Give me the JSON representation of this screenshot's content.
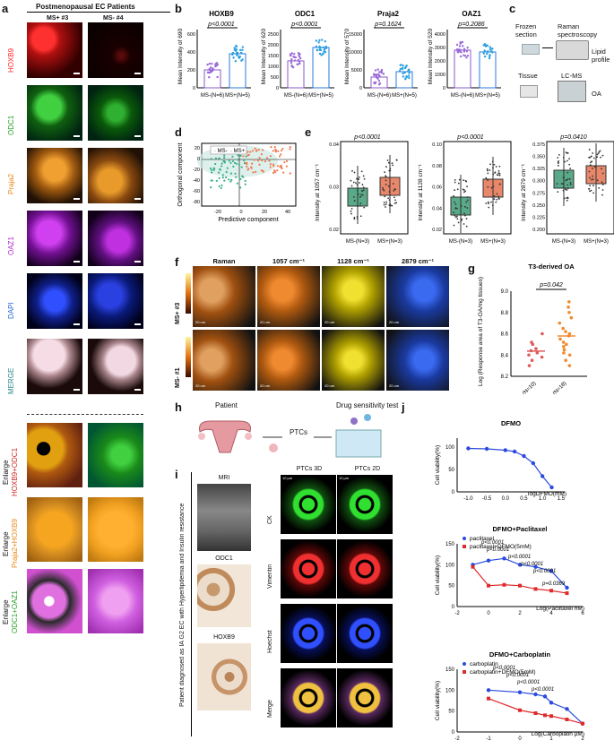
{
  "panel_a": {
    "letter": "a",
    "header": "Postmenopausal EC Patients",
    "col1": "MS+ #3",
    "col2": "MS- #4",
    "rows": [
      {
        "label": "HOXB9",
        "color": "#ff2a2a"
      },
      {
        "label": "ODC1",
        "color": "#2aa02a"
      },
      {
        "label": "Praja2",
        "color": "#e88a1a"
      },
      {
        "label": "OAZ1",
        "color": "#b02ad0"
      },
      {
        "label": "DAPI",
        "color": "#2a6ad8"
      },
      {
        "label": "MERGE",
        "color": "#2a8a8a"
      },
      {
        "label_a": "Enlarge",
        "label_b": "HOXB9+ODC1"
      },
      {
        "label_a": "Enlarge",
        "label_b": "Praja2+HOXB9"
      },
      {
        "label_a": "Enlarge",
        "label_b": "ODC1+OAZ1"
      }
    ]
  },
  "panel_b": {
    "letter": "b",
    "plots": [
      {
        "title": "HOXB9",
        "ylabel": "Mean Intensity of 690",
        "p": "p<0.0001",
        "yticks": [
          "0",
          "200",
          "400",
          "600"
        ]
      },
      {
        "title": "ODC1",
        "ylabel": "Mean Intensity of 620",
        "p": "p<0.0001",
        "yticks": [
          "0",
          "500",
          "1000",
          "1500",
          "2000",
          "2500"
        ]
      },
      {
        "title": "Praja2",
        "ylabel": "Mean Intensity of 570",
        "p": "p=0.1624",
        "yticks": [
          "0",
          "5000",
          "10000",
          "15000"
        ]
      },
      {
        "title": "OAZ1",
        "ylabel": "Mean Intensity of 520",
        "p": "p=0.2086",
        "yticks": [
          "0",
          "1000",
          "2000",
          "3000",
          "4000"
        ]
      }
    ],
    "xcats": [
      "MS-(N=6)",
      "MS+(N=5)"
    ]
  },
  "panel_c": {
    "letter": "c",
    "frozen": "Frozen section",
    "raman": "Raman spectroscopy",
    "lipid": "Lipid profile",
    "tissue": "Tissue",
    "lcms": "LC-MS",
    "oa": "OA"
  },
  "panel_d": {
    "letter": "d",
    "legend": [
      "MS-",
      "MS+"
    ],
    "xlabel": "Predictive component",
    "ylabel": "Orthogonal component",
    "xticks": [
      "-20",
      "0",
      "20",
      "40"
    ],
    "yticks": [
      "20",
      "0",
      "-20",
      "-40",
      "-60",
      "-80"
    ]
  },
  "panel_e": {
    "letter": "e",
    "plots": [
      {
        "ylabel": "Intensity at 1057 cm⁻¹",
        "p": "p<0.0001",
        "yticks": [
          "0.02",
          "0.03",
          "0.04"
        ]
      },
      {
        "ylabel": "Intensity at 1128 cm⁻¹",
        "p": "p<0.0001",
        "yticks": [
          "0.02",
          "0.04",
          "0.06",
          "0.08",
          "0.10"
        ]
      },
      {
        "ylabel": "Intensity at 2879 cm⁻¹",
        "p": "p=0.0410",
        "yticks": [
          "0.200",
          "0.225",
          "0.250",
          "0.275",
          "0.300",
          "0.325",
          "0.350",
          "0.375"
        ]
      }
    ],
    "xcats": [
      "MS-(N=3)",
      "MS+(N=3)"
    ]
  },
  "panel_f": {
    "letter": "f",
    "cols": [
      "Raman",
      "1057 cm⁻¹",
      "1128 cm⁻¹",
      "2879 cm⁻¹"
    ],
    "rows": [
      "MS+ #3",
      "MS- #1"
    ],
    "scale": "20 um"
  },
  "panel_g": {
    "letter": "g",
    "title": "T3-derived OA",
    "p": "p=0.042",
    "ylabel": "Log (Response area of T3-OA/mg tissues)",
    "yticks": [
      "8.2",
      "8.4",
      "8.6",
      "8.8",
      "9.0"
    ],
    "xcats": [
      "MS-(N=10)",
      "MS+(N=18)"
    ]
  },
  "panel_h": {
    "letter": "h",
    "patient": "Patient",
    "ptcs": "PTCs",
    "drug": "Drug sensitivity test"
  },
  "panel_i": {
    "letter": "i",
    "side": "Patient  diagnosed as IA G2 EC with Hyperlipdemia and Insulin resistance",
    "mri": "MRI",
    "odc1": "ODC1",
    "hoxb9": "HOXB9",
    "col3d": "PTCs 3D",
    "col2d": "PTCs 2D",
    "stains": [
      "CK",
      "Vimentin",
      "Hoechst",
      "Merge"
    ],
    "scale": "10 µm"
  },
  "panel_j": {
    "letter": "j",
    "plot1": {
      "title": "DFMO",
      "xlabel": "logDFMO(mM)",
      "ylabel": "Cell viability(%)",
      "xticks": [
        "-1.0",
        "-0.5",
        "0.0",
        "0.5",
        "1.0",
        "1.5"
      ],
      "yticks": [
        "0",
        "50",
        "100"
      ]
    },
    "plot2": {
      "title": "DFMO+Paclitaxel",
      "legend": [
        "paclitaxel",
        "paclitaxel+DFMO(5mM)"
      ],
      "xlabel": "Log(Paclitaxel nM)",
      "ylabel": "Cell viability(%)",
      "xticks": [
        "-2",
        "0",
        "2",
        "4",
        "6"
      ],
      "yticks": [
        "0",
        "50",
        "100",
        "150"
      ],
      "pvals": [
        "p<0.0001",
        "p<0.0001",
        "p<0.0001",
        "p<0.0001",
        "p<0.0001",
        "p=0.0369"
      ]
    },
    "plot3": {
      "title": "DFMO+Carboplatin",
      "legend": [
        "carboplatin",
        "carboplatin+DFMO(5mM)"
      ],
      "xlabel": "Log(Carboplatin µM)",
      "ylabel": "Cell viability(%)",
      "xticks": [
        "-2",
        "-1",
        "0",
        "1",
        "2"
      ],
      "yticks": [
        "0",
        "50",
        "100",
        "150"
      ],
      "pvals": [
        "p<0.0001",
        "p<0.0001",
        "p<0.0001",
        "p<0.0001"
      ]
    }
  },
  "chart_data": [
    {
      "type": "scatter",
      "panel": "j-DFMO",
      "x": [
        -1.0,
        -0.5,
        0.0,
        0.25,
        0.5,
        0.75,
        1.0,
        1.25
      ],
      "y": [
        97,
        96,
        93,
        90,
        80,
        64,
        35,
        10
      ],
      "xlabel": "logDFMO(mM)",
      "ylabel": "Cell viability(%)",
      "ylim": [
        0,
        120
      ]
    },
    {
      "type": "scatter",
      "panel": "j-Paclitaxel",
      "series": [
        {
          "name": "paclitaxel",
          "x": [
            -1,
            0,
            1,
            2,
            3,
            4,
            5
          ],
          "y": [
            100,
            110,
            115,
            100,
            95,
            85,
            45
          ]
        },
        {
          "name": "paclitaxel+DFMO(5mM)",
          "x": [
            -1,
            0,
            1,
            2,
            3,
            4,
            5
          ],
          "y": [
            95,
            50,
            52,
            50,
            42,
            38,
            32
          ]
        }
      ],
      "xlabel": "Log(Paclitaxel nM)",
      "ylabel": "Cell viability(%)",
      "ylim": [
        0,
        150
      ]
    },
    {
      "type": "scatter",
      "panel": "j-Carboplatin",
      "series": [
        {
          "name": "carboplatin",
          "x": [
            -1,
            0,
            0.5,
            0.8,
            1.0,
            1.5,
            2.0
          ],
          "y": [
            100,
            95,
            90,
            85,
            70,
            55,
            20
          ]
        },
        {
          "name": "carboplatin+DFMO(5mM)",
          "x": [
            -1,
            0,
            0.5,
            0.8,
            1.0,
            1.5,
            2.0
          ],
          "y": [
            80,
            52,
            45,
            40,
            38,
            30,
            20
          ]
        }
      ],
      "xlabel": "Log(Carboplatin µM)",
      "ylabel": "Cell viability(%)",
      "ylim": [
        0,
        150
      ]
    },
    {
      "type": "scatter",
      "panel": "g",
      "series": [
        {
          "name": "MS-(N=10)",
          "values": [
            8.3,
            8.35,
            8.38,
            8.4,
            8.42,
            8.44,
            8.46,
            8.5,
            8.52,
            8.6
          ]
        },
        {
          "name": "MS+(N=18)",
          "values": [
            8.3,
            8.35,
            8.4,
            8.42,
            8.45,
            8.48,
            8.5,
            8.52,
            8.55,
            8.58,
            8.6,
            8.62,
            8.65,
            8.7,
            8.75,
            8.8,
            8.85,
            8.9
          ]
        }
      ],
      "ylabel": "Log (Response area of T3-OA/mg tissues)",
      "ylim": [
        8.2,
        9.0
      ]
    }
  ]
}
